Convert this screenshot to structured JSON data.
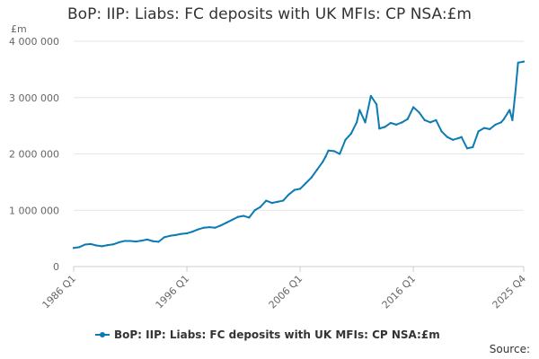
{
  "title": "BoP: IIP: Liabs: FC deposits with UK MFIs: CP NSA:£m",
  "source_label": "Source:",
  "colors": {
    "series": "#0c7bb3",
    "grid": "#e6e6e6",
    "axis": "#cccccc"
  },
  "chart_data": {
    "type": "line",
    "title": "BoP: IIP: Liabs: FC deposits with UK MFIs: CP NSA:£m",
    "ylabel": "£m",
    "ylim": [
      0,
      4000000
    ],
    "y_ticks": [
      0,
      1000000,
      2000000,
      3000000,
      4000000
    ],
    "y_tick_labels": [
      "0",
      "1 000 000",
      "2 000 000",
      "3 000 000",
      "4 000 000"
    ],
    "x_tick_labels": [
      "1986 Q1",
      "1996 Q1",
      "2006 Q1",
      "2016 Q1",
      "2025 Q4"
    ],
    "x_tick_positions": [
      "1986 Q1",
      "1996 Q1",
      "2006 Q1",
      "2016 Q1",
      "2025 Q4"
    ],
    "x_range": [
      "1986 Q1",
      "2025 Q4"
    ],
    "grid": true,
    "legend_position": "bottom",
    "series": [
      {
        "name": "BoP: IIP: Liabs: FC deposits with UK MFIs: CP NSA:£m",
        "points": [
          [
            "1986 Q1",
            330000
          ],
          [
            "1986 Q3",
            345000
          ],
          [
            "1987 Q1",
            390000
          ],
          [
            "1987 Q3",
            400000
          ],
          [
            "1988 Q1",
            375000
          ],
          [
            "1988 Q3",
            360000
          ],
          [
            "1989 Q1",
            380000
          ],
          [
            "1989 Q3",
            395000
          ],
          [
            "1990 Q1",
            430000
          ],
          [
            "1990 Q3",
            455000
          ],
          [
            "1991 Q1",
            455000
          ],
          [
            "1991 Q3",
            445000
          ],
          [
            "1992 Q1",
            460000
          ],
          [
            "1992 Q3",
            480000
          ],
          [
            "1993 Q1",
            450000
          ],
          [
            "1993 Q3",
            440000
          ],
          [
            "1994 Q1",
            520000
          ],
          [
            "1994 Q3",
            545000
          ],
          [
            "1995 Q1",
            560000
          ],
          [
            "1995 Q3",
            580000
          ],
          [
            "1996 Q1",
            590000
          ],
          [
            "1996 Q3",
            620000
          ],
          [
            "1997 Q1",
            660000
          ],
          [
            "1997 Q3",
            690000
          ],
          [
            "1998 Q1",
            700000
          ],
          [
            "1998 Q3",
            690000
          ],
          [
            "1999 Q1",
            730000
          ],
          [
            "1999 Q3",
            780000
          ],
          [
            "2000 Q1",
            830000
          ],
          [
            "2000 Q3",
            880000
          ],
          [
            "2001 Q1",
            900000
          ],
          [
            "2001 Q3",
            870000
          ],
          [
            "2002 Q1",
            1000000
          ],
          [
            "2002 Q3",
            1060000
          ],
          [
            "2003 Q1",
            1170000
          ],
          [
            "2003 Q3",
            1130000
          ],
          [
            "2004 Q1",
            1150000
          ],
          [
            "2004 Q3",
            1170000
          ],
          [
            "2005 Q1",
            1280000
          ],
          [
            "2005 Q3",
            1360000
          ],
          [
            "2006 Q1",
            1380000
          ],
          [
            "2006 Q3",
            1480000
          ],
          [
            "2007 Q1",
            1580000
          ],
          [
            "2007 Q3",
            1720000
          ],
          [
            "2008 Q1",
            1860000
          ],
          [
            "2008 Q2",
            1950000
          ],
          [
            "2008 Q3",
            2060000
          ],
          [
            "2009 Q1",
            2050000
          ],
          [
            "2009 Q3",
            2000000
          ],
          [
            "2010 Q1",
            2250000
          ],
          [
            "2010 Q3",
            2360000
          ],
          [
            "2011 Q1",
            2560000
          ],
          [
            "2011 Q2",
            2780000
          ],
          [
            "2011 Q4",
            2560000
          ],
          [
            "2012 Q2",
            3030000
          ],
          [
            "2012 Q4",
            2880000
          ],
          [
            "2013 Q1",
            2450000
          ],
          [
            "2013 Q3",
            2480000
          ],
          [
            "2014 Q1",
            2550000
          ],
          [
            "2014 Q3",
            2520000
          ],
          [
            "2015 Q1",
            2560000
          ],
          [
            "2015 Q3",
            2620000
          ],
          [
            "2016 Q1",
            2830000
          ],
          [
            "2016 Q3",
            2740000
          ],
          [
            "2017 Q1",
            2600000
          ],
          [
            "2017 Q3",
            2560000
          ],
          [
            "2018 Q1",
            2600000
          ],
          [
            "2018 Q3",
            2400000
          ],
          [
            "2019 Q1",
            2300000
          ],
          [
            "2019 Q3",
            2250000
          ],
          [
            "2020 Q1",
            2280000
          ],
          [
            "2020 Q2",
            2300000
          ],
          [
            "2020 Q4",
            2100000
          ],
          [
            "2021 Q2",
            2120000
          ],
          [
            "2021 Q4",
            2400000
          ],
          [
            "2022 Q2",
            2460000
          ],
          [
            "2022 Q4",
            2440000
          ],
          [
            "2023 Q2",
            2520000
          ],
          [
            "2023 Q4",
            2560000
          ],
          [
            "2024 Q1",
            2620000
          ],
          [
            "2024 Q3",
            2780000
          ],
          [
            "2024 Q4",
            2600000
          ],
          [
            "2025 Q1",
            3070000
          ],
          [
            "2025 Q2",
            3620000
          ],
          [
            "2025 Q4",
            3640000
          ]
        ]
      }
    ]
  }
}
